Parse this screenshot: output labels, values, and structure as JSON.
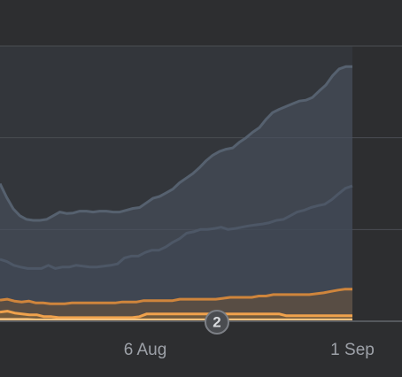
{
  "chart_data": {
    "type": "area",
    "x_ticks": [
      "6 Aug",
      "1 Sep"
    ],
    "series": [
      {
        "color": "#4a5462",
        "line_color": "#56616f",
        "values": [
          3.0,
          2.7,
          2.45,
          2.3,
          2.22,
          2.2,
          2.2,
          2.22,
          2.3,
          2.38,
          2.35,
          2.36,
          2.4,
          2.4,
          2.38,
          2.4,
          2.4,
          2.38,
          2.38,
          2.42,
          2.46,
          2.48,
          2.58,
          2.68,
          2.72,
          2.8,
          2.88,
          3.02,
          3.12,
          3.22,
          3.35,
          3.5,
          3.62,
          3.7,
          3.75,
          3.78,
          3.9,
          4.0,
          4.12,
          4.22,
          4.4,
          4.55,
          4.62,
          4.68,
          4.74,
          4.8,
          4.82,
          4.88,
          5.02,
          5.15,
          5.35,
          5.5,
          5.55,
          5.55
        ]
      },
      {
        "color": "#3e4753",
        "line_color": "#4d5766",
        "values": [
          1.35,
          1.3,
          1.22,
          1.18,
          1.15,
          1.15,
          1.15,
          1.22,
          1.15,
          1.18,
          1.18,
          1.22,
          1.2,
          1.18,
          1.18,
          1.2,
          1.22,
          1.25,
          1.38,
          1.42,
          1.42,
          1.5,
          1.55,
          1.55,
          1.62,
          1.72,
          1.8,
          1.92,
          1.95,
          2.0,
          2.0,
          2.02,
          2.05,
          2.0,
          2.02,
          2.05,
          2.08,
          2.1,
          2.12,
          2.15,
          2.2,
          2.22,
          2.3,
          2.38,
          2.42,
          2.48,
          2.52,
          2.55,
          2.65,
          2.78,
          2.9,
          2.95
        ]
      },
      {
        "color": "#6e5339",
        "line_color": "#cf853c",
        "values": [
          0.46,
          0.48,
          0.44,
          0.42,
          0.44,
          0.4,
          0.4,
          0.38,
          0.38,
          0.38,
          0.4,
          0.4,
          0.4,
          0.4,
          0.4,
          0.4,
          0.4,
          0.42,
          0.42,
          0.42,
          0.45,
          0.45,
          0.45,
          0.45,
          0.45,
          0.48,
          0.48,
          0.48,
          0.48,
          0.48,
          0.48,
          0.5,
          0.52,
          0.52,
          0.52,
          0.52,
          0.55,
          0.55,
          0.58,
          0.58,
          0.58,
          0.58,
          0.58,
          0.58,
          0.6,
          0.62,
          0.65,
          0.68,
          0.7,
          0.7
        ]
      },
      {
        "color": "#8b6634",
        "line_color": "#f0a24c",
        "values": [
          0.2,
          0.22,
          0.18,
          0.16,
          0.14,
          0.14,
          0.1,
          0.1,
          0.08,
          0.08,
          0.08,
          0.08,
          0.08,
          0.08,
          0.08,
          0.08,
          0.08,
          0.08,
          0.08,
          0.1,
          0.16,
          0.16,
          0.16,
          0.16,
          0.16,
          0.16,
          0.16,
          0.16,
          0.16,
          0.16,
          0.16,
          0.16,
          0.16,
          0.16,
          0.16,
          0.16,
          0.16,
          0.16,
          0.16,
          0.12,
          0.12,
          0.12,
          0.12,
          0.12,
          0.12,
          0.12,
          0.12,
          0.12,
          0.12
        ]
      },
      {
        "color": "#d89a4e",
        "line_color": "#f7c27e",
        "values": [
          0.04,
          0.04,
          0.04,
          0.04,
          0.03,
          0.03,
          0.03,
          0.03,
          0.03,
          0.03,
          0.03,
          0.03,
          0.03,
          0.03,
          0.03,
          0.03,
          0.03,
          0.03,
          0.03,
          0.03,
          0.03,
          0.03,
          0.03,
          0.03,
          0.03,
          0.03,
          0.03,
          0.03,
          0.03,
          0.03,
          0.03,
          0.03,
          0.03,
          0.03,
          0.03,
          0.03,
          0.03,
          0.03,
          0.03,
          0.03
        ]
      }
    ],
    "ylim": [
      0,
      6
    ],
    "grid": true,
    "annotation_badge": "2",
    "colors": {
      "background": "#2d2e30",
      "plot_area_fill": "#33363b",
      "gridline": "#4a4d52",
      "baseline": "#55585d",
      "tick_text": "#9da1a8",
      "badge_fill": "#4a4c50",
      "badge_stroke": "#7d8086"
    }
  }
}
